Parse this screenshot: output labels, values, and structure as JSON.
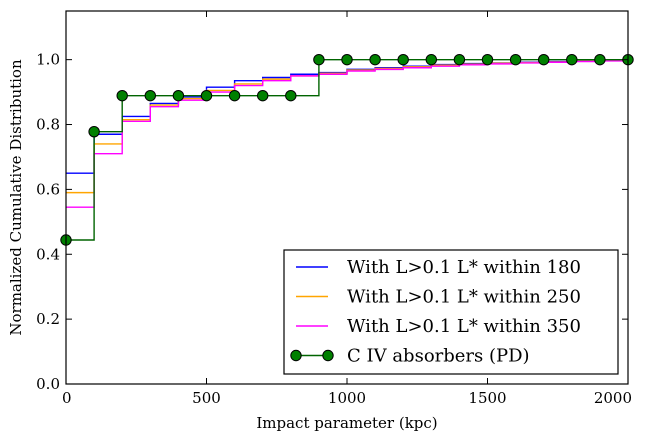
{
  "chart_data": {
    "type": "line",
    "xlabel": "Impact parameter (kpc)",
    "ylabel": "Normalized Cumulative Distribution",
    "xlim": [
      0,
      2000
    ],
    "ylim": [
      0,
      1.15
    ],
    "xticks": [
      0,
      500,
      1000,
      1500,
      2000
    ],
    "xtick_labels": [
      "0",
      "500",
      "1000",
      "1500",
      "2000"
    ],
    "yticks": [
      0.0,
      0.2,
      0.4,
      0.6,
      0.8,
      1.0
    ],
    "ytick_labels": [
      "0.0",
      "0.2",
      "0.4",
      "0.6",
      "0.8",
      "1.0"
    ],
    "grid": false,
    "legend_position": "lower-right",
    "x": [
      0,
      100,
      200,
      300,
      400,
      500,
      600,
      700,
      800,
      900,
      1000,
      1100,
      1200,
      1300,
      1400,
      1500,
      1600,
      1700,
      1800,
      1900,
      2000
    ],
    "series": [
      {
        "name": "With L>0.1 L* within 180",
        "color": "#0000ff",
        "style": "step",
        "marker": false,
        "values": [
          0.65,
          0.77,
          0.825,
          0.865,
          0.885,
          0.915,
          0.935,
          0.945,
          0.955,
          0.96,
          0.97,
          0.975,
          0.98,
          0.985,
          0.988,
          0.99,
          0.992,
          0.994,
          0.996,
          0.998,
          1.0
        ]
      },
      {
        "name": "With L>0.1 L* within 250",
        "color": "#ffa500",
        "style": "step",
        "marker": false,
        "values": [
          0.59,
          0.74,
          0.815,
          0.86,
          0.88,
          0.905,
          0.925,
          0.94,
          0.95,
          0.958,
          0.968,
          0.973,
          0.978,
          0.983,
          0.986,
          0.989,
          0.991,
          0.993,
          0.995,
          0.997,
          1.0
        ]
      },
      {
        "name": "With L>0.1 L* within 350",
        "color": "#ff00ff",
        "style": "step",
        "marker": false,
        "values": [
          0.545,
          0.71,
          0.81,
          0.855,
          0.875,
          0.9,
          0.92,
          0.935,
          0.95,
          0.955,
          0.965,
          0.97,
          0.975,
          0.98,
          0.984,
          0.987,
          0.99,
          0.992,
          0.994,
          0.996,
          1.0
        ]
      },
      {
        "name": "C IV absorbers (PD)",
        "color": "#006400",
        "marker_color": "#008000",
        "style": "step",
        "marker": true,
        "values": [
          0.444,
          0.778,
          0.889,
          0.889,
          0.889,
          0.889,
          0.889,
          0.889,
          0.889,
          1.0,
          1.0,
          1.0,
          1.0,
          1.0,
          1.0,
          1.0,
          1.0,
          1.0,
          1.0,
          1.0,
          1.0
        ]
      }
    ]
  }
}
